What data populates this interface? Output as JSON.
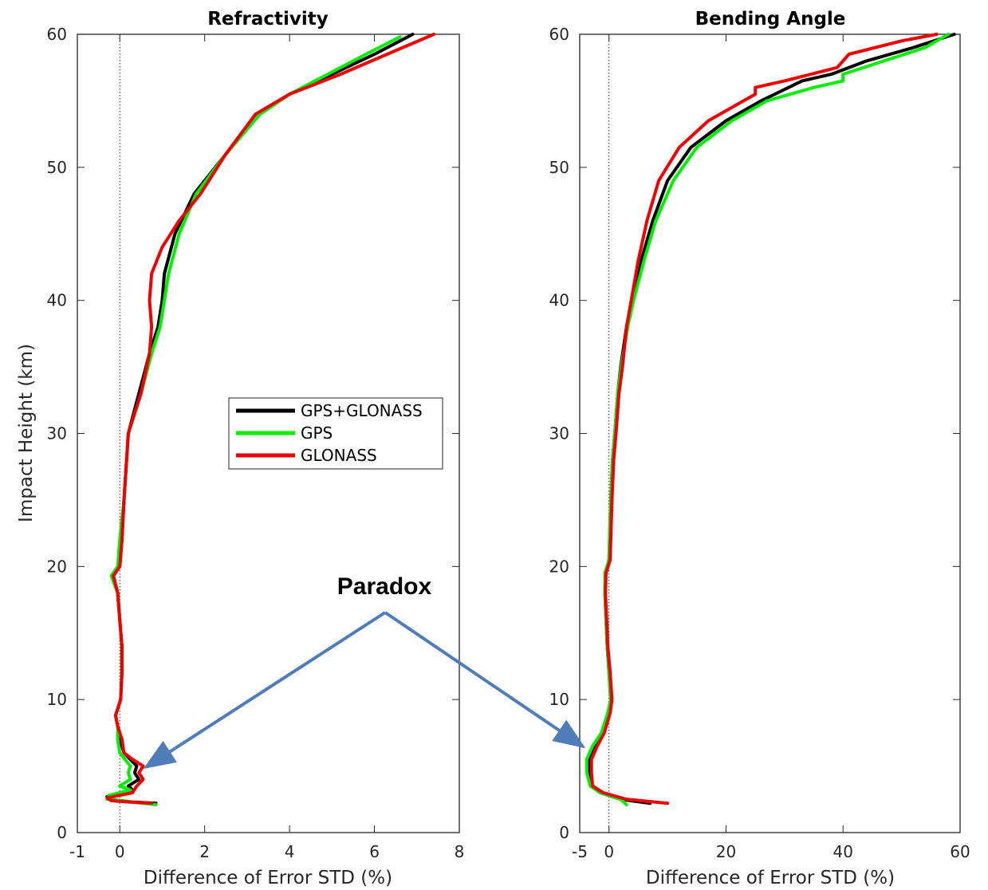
{
  "annotation": {
    "text": "Paradox",
    "color": "#4F7DB9"
  },
  "chart_data": [
    {
      "type": "line",
      "title": "Refractivity",
      "xlabel": "Difference of Error STD (%)",
      "ylabel": "Impact Height (km)",
      "xlim": [
        -1,
        8
      ],
      "ylim": [
        0,
        60
      ],
      "xticks": [
        -1,
        0,
        2,
        4,
        6,
        8
      ],
      "yticks": [
        0,
        10,
        20,
        30,
        40,
        50,
        60
      ],
      "zero_line": true,
      "legend": {
        "placement": "center-right"
      },
      "series": [
        {
          "name": "GPS+GLONASS",
          "color": "#000000",
          "points": [
            [
              0.85,
              2.2
            ],
            [
              0.3,
              2.3
            ],
            [
              -0.25,
              2.5
            ],
            [
              -0.3,
              2.7
            ],
            [
              0.3,
              3.2
            ],
            [
              0.2,
              3.5
            ],
            [
              0.45,
              4.0
            ],
            [
              0.35,
              4.5
            ],
            [
              0.4,
              5.0
            ],
            [
              0.1,
              6.0
            ],
            [
              0.0,
              7.0
            ],
            [
              -0.05,
              8.0
            ],
            [
              -0.1,
              8.8
            ],
            [
              0.02,
              10
            ],
            [
              0.05,
              12
            ],
            [
              0.05,
              14
            ],
            [
              0.0,
              16
            ],
            [
              -0.05,
              18
            ],
            [
              -0.15,
              19.3
            ],
            [
              0.0,
              20
            ],
            [
              0.05,
              22
            ],
            [
              0.1,
              25
            ],
            [
              0.2,
              30
            ],
            [
              0.45,
              33
            ],
            [
              0.7,
              36
            ],
            [
              0.9,
              38
            ],
            [
              1.0,
              40
            ],
            [
              1.05,
              42
            ],
            [
              1.3,
              45
            ],
            [
              1.75,
              48
            ],
            [
              2.5,
              51
            ],
            [
              3.3,
              54
            ],
            [
              4.0,
              55.5
            ],
            [
              5.0,
              57
            ],
            [
              6.0,
              58.5
            ],
            [
              6.9,
              60
            ]
          ]
        },
        {
          "name": "GPS",
          "color": "#00EE00",
          "points": [
            [
              0.85,
              2.1
            ],
            [
              0.3,
              2.3
            ],
            [
              -0.3,
              2.5
            ],
            [
              -0.25,
              2.8
            ],
            [
              0.25,
              3.2
            ],
            [
              0.0,
              3.5
            ],
            [
              0.25,
              4.0
            ],
            [
              0.2,
              4.5
            ],
            [
              0.25,
              5.0
            ],
            [
              0.0,
              6.0
            ],
            [
              -0.05,
              7.0
            ],
            [
              -0.05,
              8.0
            ],
            [
              -0.1,
              8.8
            ],
            [
              0.02,
              10
            ],
            [
              0.05,
              12
            ],
            [
              0.05,
              14
            ],
            [
              0.0,
              16
            ],
            [
              -0.05,
              18
            ],
            [
              -0.2,
              19.3
            ],
            [
              -0.05,
              20
            ],
            [
              0.0,
              22
            ],
            [
              0.1,
              25
            ],
            [
              0.2,
              30
            ],
            [
              0.5,
              33
            ],
            [
              0.75,
              36
            ],
            [
              0.95,
              38
            ],
            [
              1.05,
              40
            ],
            [
              1.15,
              42
            ],
            [
              1.4,
              45
            ],
            [
              1.8,
              48
            ],
            [
              2.5,
              51
            ],
            [
              3.3,
              54
            ],
            [
              4.0,
              55.5
            ],
            [
              4.9,
              57
            ],
            [
              5.8,
              58.5
            ],
            [
              6.6,
              59.8
            ]
          ]
        },
        {
          "name": "GLONASS",
          "color": "#EE0000",
          "points": [
            [
              0.75,
              2.2
            ],
            [
              0.2,
              2.3
            ],
            [
              -0.2,
              2.4
            ],
            [
              -0.3,
              2.6
            ],
            [
              0.3,
              3.0
            ],
            [
              0.4,
              3.5
            ],
            [
              0.55,
              4.0
            ],
            [
              0.45,
              4.5
            ],
            [
              0.55,
              5.0
            ],
            [
              0.3,
              5.5
            ],
            [
              0.1,
              6.0
            ],
            [
              0.05,
              7.0
            ],
            [
              -0.05,
              8.0
            ],
            [
              -0.1,
              8.8
            ],
            [
              0.02,
              10
            ],
            [
              0.05,
              12
            ],
            [
              0.05,
              14
            ],
            [
              0.0,
              16
            ],
            [
              -0.05,
              18
            ],
            [
              -0.15,
              19.3
            ],
            [
              0.0,
              20
            ],
            [
              0.05,
              22
            ],
            [
              0.1,
              25
            ],
            [
              0.2,
              30
            ],
            [
              0.5,
              33
            ],
            [
              0.7,
              36
            ],
            [
              0.75,
              38
            ],
            [
              0.7,
              40
            ],
            [
              0.75,
              42
            ],
            [
              1.0,
              44
            ],
            [
              1.4,
              46
            ],
            [
              1.9,
              48
            ],
            [
              2.5,
              51
            ],
            [
              3.2,
              54
            ],
            [
              4.0,
              55.5
            ],
            [
              5.2,
              57
            ],
            [
              6.3,
              58.5
            ],
            [
              7.4,
              60
            ]
          ]
        }
      ]
    },
    {
      "type": "line",
      "title": "Bending Angle",
      "xlabel": "Difference of Error STD (%)",
      "ylabel": "",
      "xlim": [
        -5,
        60
      ],
      "ylim": [
        0,
        60
      ],
      "xticks": [
        -5,
        0,
        20,
        40,
        60
      ],
      "yticks": [
        0,
        10,
        20,
        30,
        40,
        50,
        60
      ],
      "zero_line": true,
      "series": [
        {
          "name": "GPS+GLONASS",
          "color": "#000000",
          "points": [
            [
              7.0,
              2.2
            ],
            [
              2.0,
              2.5
            ],
            [
              -1.5,
              3.0
            ],
            [
              -3.0,
              3.5
            ],
            [
              -3.5,
              4.5
            ],
            [
              -3.5,
              5.5
            ],
            [
              -2.5,
              6.5
            ],
            [
              -1.0,
              7.5
            ],
            [
              0.0,
              9.0
            ],
            [
              0.3,
              10
            ],
            [
              0.0,
              12
            ],
            [
              -0.3,
              14
            ],
            [
              -0.5,
              16
            ],
            [
              -0.7,
              18
            ],
            [
              -0.6,
              19.5
            ],
            [
              0.0,
              20.5
            ],
            [
              0.1,
              22
            ],
            [
              0.3,
              25
            ],
            [
              0.6,
              28
            ],
            [
              1.0,
              30
            ],
            [
              1.5,
              33
            ],
            [
              2.0,
              35
            ],
            [
              3.0,
              38
            ],
            [
              4.0,
              40
            ],
            [
              5.5,
              43
            ],
            [
              7.5,
              46
            ],
            [
              10.0,
              49
            ],
            [
              14.0,
              51.5
            ],
            [
              20.0,
              53.5
            ],
            [
              26.0,
              55
            ],
            [
              33.0,
              56.5
            ],
            [
              38.0,
              57
            ],
            [
              44.0,
              58
            ],
            [
              52.0,
              59
            ],
            [
              59.0,
              60
            ]
          ]
        },
        {
          "name": "GPS",
          "color": "#00EE00",
          "points": [
            [
              3.0,
              2.1
            ],
            [
              2.0,
              2.5
            ],
            [
              -1.5,
              3.0
            ],
            [
              -3.2,
              3.5
            ],
            [
              -3.8,
              4.5
            ],
            [
              -3.8,
              5.5
            ],
            [
              -2.8,
              6.5
            ],
            [
              -1.3,
              7.5
            ],
            [
              -0.2,
              9.0
            ],
            [
              0.3,
              10
            ],
            [
              0.0,
              12
            ],
            [
              -0.3,
              14
            ],
            [
              -0.5,
              16
            ],
            [
              -0.7,
              18
            ],
            [
              -0.7,
              19.5
            ],
            [
              0.0,
              20.5
            ],
            [
              0.1,
              22
            ],
            [
              0.3,
              25
            ],
            [
              0.6,
              28
            ],
            [
              1.0,
              30
            ],
            [
              1.5,
              33
            ],
            [
              2.1,
              35
            ],
            [
              3.2,
              38
            ],
            [
              4.2,
              40
            ],
            [
              6.0,
              43
            ],
            [
              8.0,
              46
            ],
            [
              11.0,
              49
            ],
            [
              15.0,
              51.5
            ],
            [
              21.0,
              53.5
            ],
            [
              27.0,
              55
            ],
            [
              35.0,
              56
            ],
            [
              40.0,
              56.5
            ],
            [
              40.0,
              57
            ],
            [
              47.0,
              58
            ],
            [
              54.0,
              59
            ],
            [
              58.0,
              60
            ]
          ]
        },
        {
          "name": "GLONASS",
          "color": "#EE0000",
          "points": [
            [
              10.0,
              2.2
            ],
            [
              3.0,
              2.5
            ],
            [
              -1.0,
              3.0
            ],
            [
              -2.8,
              3.5
            ],
            [
              -3.0,
              4.5
            ],
            [
              -3.0,
              5.5
            ],
            [
              -2.0,
              6.5
            ],
            [
              -0.8,
              7.5
            ],
            [
              0.2,
              9.0
            ],
            [
              0.5,
              10
            ],
            [
              0.2,
              12
            ],
            [
              -0.2,
              14
            ],
            [
              -0.4,
              16
            ],
            [
              -0.6,
              18
            ],
            [
              -0.5,
              19.5
            ],
            [
              0.2,
              20.5
            ],
            [
              0.3,
              22
            ],
            [
              0.5,
              25
            ],
            [
              0.8,
              28
            ],
            [
              1.2,
              30
            ],
            [
              1.7,
              33
            ],
            [
              2.3,
              35
            ],
            [
              3.0,
              38
            ],
            [
              3.8,
              40
            ],
            [
              5.0,
              43
            ],
            [
              6.5,
              46
            ],
            [
              8.5,
              49
            ],
            [
              12.0,
              51.5
            ],
            [
              17.0,
              53.5
            ],
            [
              23.0,
              55
            ],
            [
              25.0,
              55.5
            ],
            [
              25.0,
              56
            ],
            [
              30.0,
              56.5
            ],
            [
              39.0,
              57.5
            ],
            [
              41.0,
              58.5
            ],
            [
              50.0,
              59.5
            ],
            [
              56.0,
              60
            ]
          ]
        }
      ]
    }
  ]
}
